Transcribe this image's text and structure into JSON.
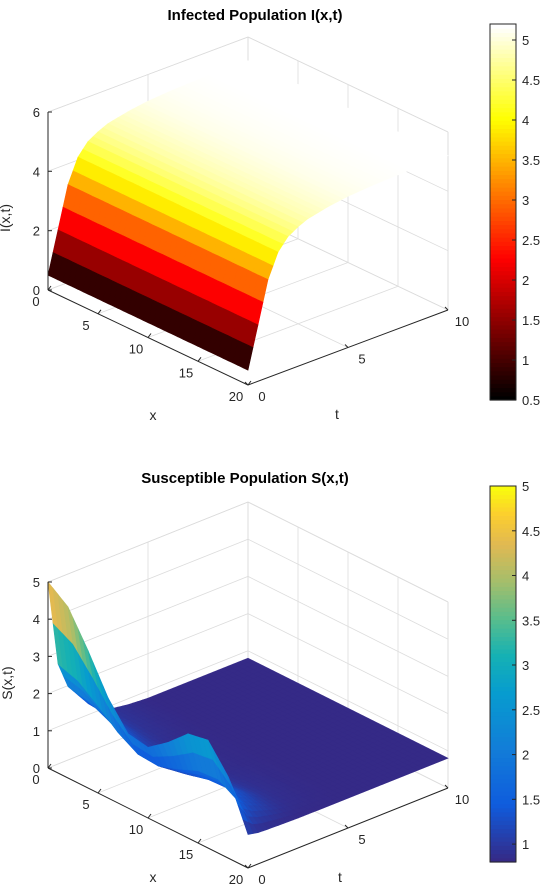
{
  "chart_data": [
    {
      "type": "surface",
      "title": "Infected Population I(x,t)",
      "xlabel": "x",
      "ylabel": "t",
      "zlabel": "I(x,t)",
      "xlim": [
        0,
        20
      ],
      "ylim": [
        0,
        10
      ],
      "zlim": [
        0,
        6
      ],
      "xticks": [
        "0",
        "5",
        "10",
        "15",
        "20"
      ],
      "yticks": [
        "0",
        "5",
        "10"
      ],
      "zticks": [
        "0",
        "2",
        "4",
        "6"
      ],
      "colormap": "hot",
      "colorbar": {
        "min": 0.5,
        "max": 5.2,
        "ticks": [
          "0.5",
          "1",
          "1.5",
          "2",
          "2.5",
          "3",
          "3.5",
          "4",
          "4.5",
          "5"
        ]
      },
      "surface": {
        "x": [
          0,
          2,
          4,
          6,
          8,
          10,
          12,
          14,
          16,
          18,
          20
        ],
        "t": [
          0,
          0.5,
          1,
          1.5,
          2,
          2.5,
          3,
          4,
          5,
          6,
          7,
          8,
          9,
          10
        ],
        "I_at_t0_across_x": [
          0.5,
          0.5,
          0.5,
          0.5,
          0.5,
          0.5,
          0.5,
          0.5,
          0.5,
          0.5,
          0.5
        ],
        "I_along_t_all_x": [
          0.5,
          1.9,
          3.3,
          4.1,
          4.5,
          4.7,
          4.85,
          5.0,
          5.1,
          5.15,
          5.18,
          5.2,
          5.2,
          5.2
        ]
      }
    },
    {
      "type": "surface",
      "title": "Susceptible Population S(x,t)",
      "xlabel": "x",
      "ylabel": "t",
      "zlabel": "S(x,t)",
      "xlim": [
        0,
        20
      ],
      "ylim": [
        0,
        10
      ],
      "zlim": [
        0,
        5
      ],
      "xticks": [
        "0",
        "5",
        "10",
        "15",
        "20"
      ],
      "yticks": [
        "0",
        "5",
        "10"
      ],
      "zticks": [
        "0",
        "1",
        "2",
        "3",
        "4",
        "5"
      ],
      "colormap": "parula",
      "colorbar": {
        "min": 0.8,
        "max": 5.0,
        "ticks": [
          "1",
          "1.5",
          "2",
          "2.5",
          "3",
          "3.5",
          "4",
          "4.5",
          "5"
        ]
      },
      "surface": {
        "x": [
          0,
          2,
          4,
          6,
          8,
          10,
          12,
          14,
          16,
          18,
          20
        ],
        "t": [
          0,
          0.5,
          1,
          1.5,
          2,
          2.5,
          3,
          4,
          5,
          6,
          7,
          8,
          9,
          10
        ],
        "S_at_t0_across_x": [
          5.0,
          4.6,
          3.7,
          2.7,
          2.0,
          1.9,
          2.3,
          2.8,
          2.9,
          2.2,
          0.9
        ],
        "S_along_t_decay_factor": [
          1.0,
          0.45,
          0.28,
          0.2,
          0.12,
          0.06,
          0.03,
          0.01,
          0.0,
          0.0,
          0.0,
          0.0,
          0.0,
          0.0
        ],
        "S_floor": 0.8
      }
    }
  ]
}
